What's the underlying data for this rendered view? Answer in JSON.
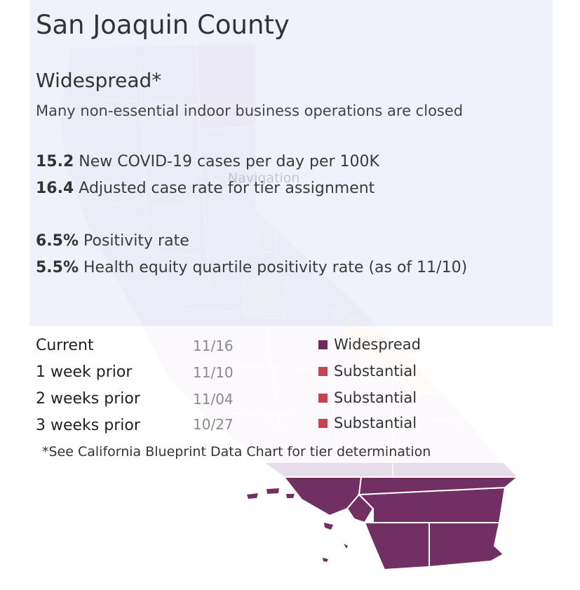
{
  "county": "San Joaquin County",
  "tier": {
    "name": "Widespread*",
    "description": "Many non-essential indoor business operations are closed"
  },
  "stats": [
    {
      "value": "15.2",
      "label": "New COVID-19 cases per day per 100K"
    },
    {
      "value": "16.4",
      "label": "Adjusted case rate for tier assignment"
    },
    {
      "value": "6.5%",
      "label": "Positivity rate"
    },
    {
      "value": "5.5%",
      "label": "Health equity quartile positivity rate (as of 11/10)"
    }
  ],
  "map_overlay_text": "Navigation",
  "history": [
    {
      "label": "Current",
      "date": "11/16",
      "tier": "Widespread",
      "color": "#6e2a63"
    },
    {
      "label": "1 week prior",
      "date": "11/10",
      "tier": "Substantial",
      "color": "#c0474f"
    },
    {
      "label": "2 weeks prior",
      "date": "11/04",
      "tier": "Substantial",
      "color": "#c0474f"
    },
    {
      "label": "3 weeks prior",
      "date": "10/27",
      "tier": "Substantial",
      "color": "#c0474f"
    }
  ],
  "footnote": "*See California Blueprint Data Chart for tier determination",
  "colors": {
    "widespread": "#722f63",
    "substantial": "#c0474f",
    "map_faded": "#e6dcea",
    "border": "#ffffff"
  }
}
